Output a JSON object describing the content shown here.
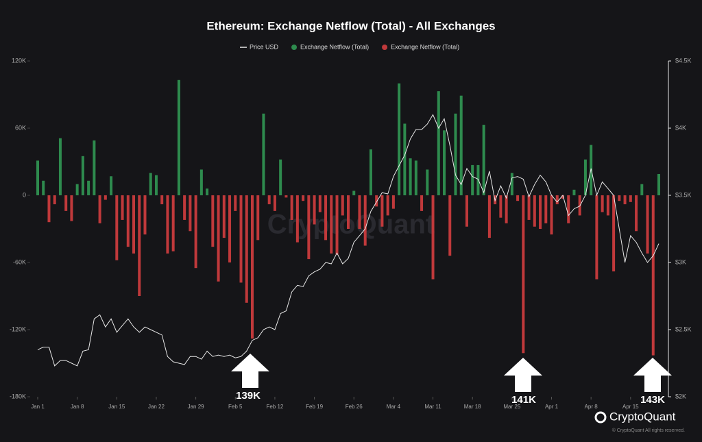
{
  "chart_data": {
    "type": "bar",
    "title": "Ethereum: Exchange Netflow (Total) - All Exchanges",
    "watermark": "CryptoQuant",
    "brand": "CryptoQuant",
    "copyright": "© CryptoQuant All rights reserved.",
    "annotations": [
      "139K",
      "141K",
      "143K"
    ],
    "categories": [
      "Jan 1",
      null,
      null,
      null,
      null,
      null,
      null,
      "Jan 8",
      null,
      null,
      null,
      null,
      null,
      null,
      "Jan 15",
      null,
      null,
      null,
      null,
      null,
      null,
      "Jan 22",
      null,
      null,
      null,
      null,
      null,
      null,
      "Jan 29",
      null,
      null,
      null,
      null,
      null,
      null,
      "Feb 5",
      null,
      null,
      null,
      null,
      null,
      null,
      "Feb 12",
      null,
      null,
      null,
      null,
      null,
      null,
      "Feb 19",
      null,
      null,
      null,
      null,
      null,
      null,
      "Feb 26",
      null,
      null,
      null,
      null,
      null,
      null,
      "Mar 4",
      null,
      null,
      null,
      null,
      null,
      null,
      "Mar 11",
      null,
      null,
      null,
      null,
      null,
      null,
      "Mar 18",
      null,
      null,
      null,
      null,
      null,
      null,
      "Mar 25",
      null,
      null,
      null,
      null,
      null,
      null,
      "Apr 1",
      null,
      null,
      null,
      null,
      null,
      null,
      "Apr 8",
      null,
      null,
      null,
      null,
      null,
      null,
      "Apr 15",
      null,
      null,
      null,
      null,
      null
    ],
    "ylim": [
      -180000,
      120000
    ],
    "yticks": [
      {
        "value": -180000,
        "label": "-180K"
      },
      {
        "value": -120000,
        "label": "-120K"
      },
      {
        "value": -60000,
        "label": "-60K"
      },
      0,
      {
        "value": 60000,
        "label": "60K"
      },
      {
        "value": 120000,
        "label": "120K"
      }
    ],
    "y2lim": [
      2000,
      4500
    ],
    "y2ticks": [
      {
        "value": 2000,
        "label": "$2K"
      },
      {
        "value": 2500,
        "label": "$2.5K"
      },
      {
        "value": 3000,
        "label": "$3K"
      },
      {
        "value": 3500,
        "label": "$3.5K"
      },
      {
        "value": 4000,
        "label": "$4K"
      },
      {
        "value": 4500,
        "label": "$4.5K"
      }
    ],
    "grid": false,
    "series": [
      {
        "name": "Price USD",
        "type": "line",
        "axis": "y2",
        "color": "#e8e8e8",
        "values": [
          2350,
          2370,
          2370,
          2230,
          2270,
          2270,
          2250,
          2230,
          2340,
          2350,
          2580,
          2610,
          2520,
          2580,
          2480,
          2530,
          2580,
          2520,
          2480,
          2520,
          2500,
          2480,
          2460,
          2300,
          2260,
          2250,
          2240,
          2300,
          2300,
          2280,
          2340,
          2300,
          2310,
          2300,
          2310,
          2290,
          2300,
          2340,
          2420,
          2440,
          2500,
          2520,
          2500,
          2620,
          2640,
          2780,
          2830,
          2820,
          2900,
          2930,
          2950,
          3000,
          2990,
          3070,
          2990,
          3030,
          3150,
          3200,
          3250,
          3380,
          3450,
          3520,
          3510,
          3640,
          3720,
          3800,
          3920,
          3990,
          3990,
          4030,
          4100,
          4000,
          4070,
          3870,
          3650,
          3580,
          3700,
          3640,
          3620,
          3520,
          3680,
          3460,
          3570,
          3480,
          3630,
          3640,
          3620,
          3490,
          3580,
          3650,
          3600,
          3500,
          3450,
          3500,
          3350,
          3400,
          3420,
          3500,
          3700,
          3500,
          3600,
          3550,
          3500,
          3250,
          3000,
          3200,
          3150,
          3070,
          3000,
          3050,
          3140
        ]
      },
      {
        "name": "Exchange Netflow (Total)",
        "type": "bar",
        "color": "#2e8b4e",
        "values": [
          31000,
          13000,
          null,
          null,
          51000,
          null,
          null,
          10000,
          35000,
          13000,
          49000,
          null,
          null,
          17000,
          null,
          null,
          null,
          null,
          null,
          null,
          20000,
          18000,
          null,
          null,
          null,
          103000,
          null,
          null,
          null,
          23000,
          6000,
          null,
          null,
          null,
          null,
          null,
          null,
          null,
          null,
          null,
          73000,
          null,
          null,
          32000,
          null,
          null,
          null,
          null,
          null,
          null,
          null,
          null,
          null,
          null,
          null,
          null,
          4000,
          null,
          null,
          41000,
          null,
          null,
          null,
          null,
          100000,
          64000,
          33000,
          31000,
          null,
          23000,
          null,
          93000,
          58000,
          null,
          73000,
          89000,
          null,
          27000,
          27000,
          63000,
          null,
          null,
          null,
          null,
          20000,
          null,
          null,
          null,
          null,
          null,
          null,
          null,
          null,
          null,
          null,
          5000,
          null,
          32000,
          45000,
          null,
          null,
          null,
          null,
          null,
          null,
          null,
          null,
          10000,
          null,
          null,
          19000
        ]
      },
      {
        "name": "Exchange Netflow (Total)",
        "type": "bar",
        "color": "#c0393b",
        "values": [
          null,
          null,
          -24000,
          -8000,
          null,
          -14000,
          -23000,
          null,
          null,
          null,
          null,
          -25000,
          -4000,
          null,
          -58000,
          -22000,
          -46000,
          -52000,
          -90000,
          -35000,
          null,
          null,
          -8000,
          -52000,
          -50000,
          null,
          -22000,
          -32000,
          -65000,
          null,
          null,
          -46000,
          -77000,
          -38000,
          -60000,
          -14000,
          -78000,
          -96000,
          -128000,
          -40000,
          null,
          -8000,
          -14000,
          null,
          -2000,
          -22000,
          -42000,
          -5000,
          -57000,
          -26000,
          -15000,
          -40000,
          -52000,
          -53000,
          -18000,
          -30000,
          null,
          -30000,
          -45000,
          null,
          -10000,
          -28000,
          -18000,
          -12000,
          null,
          null,
          null,
          null,
          -14000,
          null,
          -75000,
          null,
          null,
          -54000,
          null,
          null,
          -28000,
          null,
          null,
          null,
          -38000,
          -8000,
          -20000,
          -25000,
          null,
          -5000,
          -141000,
          -22000,
          -28000,
          -30000,
          -25000,
          -35000,
          -8000,
          -3000,
          -25000,
          null,
          -18000,
          null,
          null,
          -75000,
          -15000,
          -18000,
          -68000,
          -5000,
          -8000,
          -6000,
          -32000,
          null,
          -52000,
          -143000,
          null
        ]
      }
    ]
  }
}
